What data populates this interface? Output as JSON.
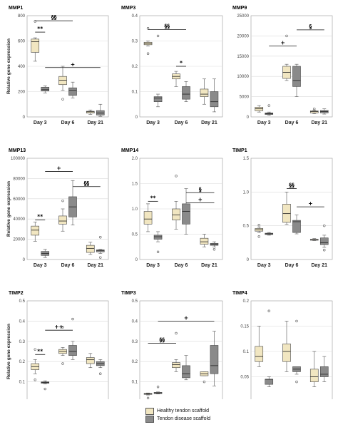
{
  "colors": {
    "healthy": "#f1e6c1",
    "disease": "#8a8a8a",
    "grid": "#d9d9d9",
    "frame": "#999999",
    "line": "#111111"
  },
  "y_axis_label": "Relative gene expression",
  "legend": [
    {
      "label": "Healthy tendon scaffold",
      "color": "#f1e6c1"
    },
    {
      "label": "Tendon disease scaffold",
      "color": "#8a8a8a"
    }
  ],
  "chart_data": [
    {
      "type": "box",
      "title": "MMP1",
      "categories": [
        "Day 3",
        "Day 6",
        "Day 21"
      ],
      "ylim": [
        0,
        800
      ],
      "yticks": [
        0,
        200,
        400,
        600,
        800
      ],
      "ytick_labels": [
        "0",
        "200",
        "400",
        "600",
        "800"
      ],
      "show_ylabel": true,
      "boxes": [
        {
          "day": "Day 3",
          "series": "healthy",
          "min": 440,
          "q1": 510,
          "median": 595,
          "q3": 615,
          "max": 625,
          "outliers": [
            755
          ]
        },
        {
          "day": "Day 3",
          "series": "disease",
          "min": 190,
          "q1": 205,
          "median": 215,
          "q3": 235,
          "max": 245,
          "outliers": []
        },
        {
          "day": "Day 6",
          "series": "healthy",
          "min": 210,
          "q1": 255,
          "median": 290,
          "q3": 320,
          "max": 400,
          "outliers": [
            140
          ]
        },
        {
          "day": "Day 6",
          "series": "disease",
          "min": 150,
          "q1": 170,
          "median": 210,
          "q3": 230,
          "max": 275,
          "outliers": []
        },
        {
          "day": "Day 21",
          "series": "healthy",
          "min": 20,
          "q1": 30,
          "median": 40,
          "q3": 45,
          "max": 55,
          "outliers": []
        },
        {
          "day": "Day 21",
          "series": "disease",
          "min": 5,
          "q1": 15,
          "median": 30,
          "q3": 50,
          "max": 100,
          "outliers": []
        }
      ],
      "annotations": [
        {
          "label": "§§",
          "from": 0,
          "to": 3,
          "y": 760
        },
        {
          "label": "**",
          "from": 0,
          "to": 1,
          "y": 670
        },
        {
          "label": "+",
          "from": 1,
          "to": 5,
          "y": 390
        }
      ]
    },
    {
      "type": "box",
      "title": "MMP3",
      "categories": [
        "Day 3",
        "Day 6",
        "Day 21"
      ],
      "ylim": [
        0,
        0.4
      ],
      "yticks": [
        0,
        0.1,
        0.2,
        0.3,
        0.4
      ],
      "ytick_labels": [
        "0",
        "0.1",
        "0.2",
        "0.3",
        "0.4"
      ],
      "show_ylabel": false,
      "boxes": [
        {
          "day": "Day 3",
          "series": "healthy",
          "min": 0.28,
          "q1": 0.285,
          "median": 0.29,
          "q3": 0.295,
          "max": 0.3,
          "outliers": [
            0.35,
            0.25
          ]
        },
        {
          "day": "Day 3",
          "series": "disease",
          "min": 0.04,
          "q1": 0.06,
          "median": 0.075,
          "q3": 0.08,
          "max": 0.09,
          "outliers": [
            0.32
          ]
        },
        {
          "day": "Day 6",
          "series": "healthy",
          "min": 0.12,
          "q1": 0.15,
          "median": 0.16,
          "q3": 0.17,
          "max": 0.18,
          "outliers": []
        },
        {
          "day": "Day 6",
          "series": "disease",
          "min": 0.06,
          "q1": 0.07,
          "median": 0.09,
          "q3": 0.12,
          "max": 0.14,
          "outliers": []
        },
        {
          "day": "Day 21",
          "series": "healthy",
          "min": 0.05,
          "q1": 0.08,
          "median": 0.09,
          "q3": 0.11,
          "max": 0.15,
          "outliers": []
        },
        {
          "day": "Day 21",
          "series": "disease",
          "min": 0.02,
          "q1": 0.04,
          "median": 0.06,
          "q3": 0.1,
          "max": 0.15,
          "outliers": []
        }
      ],
      "annotations": [
        {
          "label": "§§",
          "from": 0,
          "to": 3,
          "y": 0.345
        },
        {
          "label": "*",
          "from": 2,
          "to": 3,
          "y": 0.2
        }
      ]
    },
    {
      "type": "box",
      "title": "MMP9",
      "categories": [
        "Day 3",
        "Day 6",
        "Day 21"
      ],
      "ylim": [
        0,
        25000
      ],
      "yticks": [
        0,
        5000,
        10000,
        15000,
        20000,
        25000
      ],
      "ytick_labels": [
        "0",
        "5000",
        "10000",
        "15000",
        "20000",
        "25000"
      ],
      "show_ylabel": false,
      "boxes": [
        {
          "day": "Day 3",
          "series": "healthy",
          "min": 1200,
          "q1": 1500,
          "median": 2000,
          "q3": 2400,
          "max": 2800,
          "outliers": []
        },
        {
          "day": "Day 3",
          "series": "disease",
          "min": 400,
          "q1": 600,
          "median": 800,
          "q3": 1000,
          "max": 1200,
          "outliers": [
            2800
          ]
        },
        {
          "day": "Day 6",
          "series": "healthy",
          "min": 9000,
          "q1": 9500,
          "median": 11000,
          "q3": 12500,
          "max": 13000,
          "outliers": [
            20000
          ]
        },
        {
          "day": "Day 6",
          "series": "disease",
          "min": 5000,
          "q1": 7500,
          "median": 9000,
          "q3": 12500,
          "max": 13000,
          "outliers": []
        },
        {
          "day": "Day 21",
          "series": "healthy",
          "min": 800,
          "q1": 1000,
          "median": 1300,
          "q3": 1500,
          "max": 1700,
          "outliers": [
            2000
          ]
        },
        {
          "day": "Day 21",
          "series": "disease",
          "min": 700,
          "q1": 1000,
          "median": 1300,
          "q3": 1600,
          "max": 2000,
          "outliers": []
        }
      ],
      "annotations": [
        {
          "label": "§",
          "from": 3,
          "to": 5,
          "y": 21500
        },
        {
          "label": "+",
          "from": 1,
          "to": 3,
          "y": 17500
        }
      ]
    },
    {
      "type": "box",
      "title": "MMP13",
      "categories": [
        "Day 3",
        "Day 6",
        "Day 21"
      ],
      "ylim": [
        0,
        100000
      ],
      "yticks": [
        0,
        20000,
        40000,
        60000,
        80000,
        100000
      ],
      "ytick_labels": [
        "0",
        "20000",
        "40000",
        "60000",
        "80000",
        "100000"
      ],
      "show_ylabel": true,
      "boxes": [
        {
          "day": "Day 3",
          "series": "healthy",
          "min": 18000,
          "q1": 24000,
          "median": 29000,
          "q3": 33000,
          "max": 37000,
          "outliers": []
        },
        {
          "day": "Day 3",
          "series": "disease",
          "min": 2000,
          "q1": 4000,
          "median": 6000,
          "q3": 8000,
          "max": 10000,
          "outliers": []
        },
        {
          "day": "Day 6",
          "series": "healthy",
          "min": 28000,
          "q1": 35000,
          "median": 38000,
          "q3": 43000,
          "max": 50000,
          "outliers": [
            58000
          ]
        },
        {
          "day": "Day 6",
          "series": "disease",
          "min": 34000,
          "q1": 42000,
          "median": 52000,
          "q3": 62000,
          "max": 78000,
          "outliers": []
        },
        {
          "day": "Day 21",
          "series": "healthy",
          "min": 5000,
          "q1": 7000,
          "median": 11000,
          "q3": 14000,
          "max": 17000,
          "outliers": []
        },
        {
          "day": "Day 21",
          "series": "disease",
          "min": 6000,
          "q1": 7500,
          "median": 9000,
          "q3": 9500,
          "max": 10000,
          "outliers": [
            22000,
            2000
          ]
        }
      ],
      "annotations": [
        {
          "label": "+",
          "from": 1,
          "to": 3,
          "y": 87000
        },
        {
          "label": "§§",
          "from": 3,
          "to": 5,
          "y": 72000
        },
        {
          "label": "**",
          "from": 0,
          "to": 1,
          "y": 39000
        }
      ]
    },
    {
      "type": "box",
      "title": "MMP14",
      "categories": [
        "Day 3",
        "Day 6",
        "Day 21"
      ],
      "ylim": [
        0,
        2.0
      ],
      "yticks": [
        0,
        0.5,
        1.0,
        1.5,
        2.0
      ],
      "ytick_labels": [
        "0",
        "0.5",
        "1.0",
        "1.5",
        "2.0"
      ],
      "show_ylabel": false,
      "boxes": [
        {
          "day": "Day 3",
          "series": "healthy",
          "min": 0.55,
          "q1": 0.7,
          "median": 0.8,
          "q3": 0.95,
          "max": 1.1,
          "outliers": []
        },
        {
          "day": "Day 3",
          "series": "disease",
          "min": 0.35,
          "q1": 0.4,
          "median": 0.45,
          "q3": 0.48,
          "max": 0.55,
          "outliers": [
            0.15
          ]
        },
        {
          "day": "Day 6",
          "series": "healthy",
          "min": 0.6,
          "q1": 0.78,
          "median": 0.88,
          "q3": 1.0,
          "max": 1.15,
          "outliers": [
            1.65
          ]
        },
        {
          "day": "Day 6",
          "series": "disease",
          "min": 0.5,
          "q1": 0.7,
          "median": 0.95,
          "q3": 1.1,
          "max": 1.4,
          "outliers": []
        },
        {
          "day": "Day 21",
          "series": "healthy",
          "min": 0.25,
          "q1": 0.3,
          "median": 0.35,
          "q3": 0.42,
          "max": 0.5,
          "outliers": []
        },
        {
          "day": "Day 21",
          "series": "disease",
          "min": 0.25,
          "q1": 0.28,
          "median": 0.3,
          "q3": 0.32,
          "max": 0.35,
          "outliers": [
            0.2
          ]
        }
      ],
      "annotations": [
        {
          "label": "§",
          "from": 3,
          "to": 5,
          "y": 1.32
        },
        {
          "label": "+",
          "from": 3,
          "to": 5,
          "y": 1.12
        },
        {
          "label": "**",
          "from": 0,
          "to": 1,
          "y": 1.15
        }
      ]
    },
    {
      "type": "box",
      "title": "TIMP1",
      "categories": [
        "Day 3",
        "Day 6",
        "Day 21"
      ],
      "ylim": [
        0,
        1.5
      ],
      "yticks": [
        0,
        0.5,
        1.0,
        1.5
      ],
      "ytick_labels": [
        "0",
        "0.5",
        "1.0",
        "1.5"
      ],
      "show_ylabel": false,
      "boxes": [
        {
          "day": "Day 3",
          "series": "healthy",
          "min": 0.4,
          "q1": 0.42,
          "median": 0.44,
          "q3": 0.46,
          "max": 0.48,
          "outliers": [
            0.51,
            0.34
          ]
        },
        {
          "day": "Day 3",
          "series": "disease",
          "min": 0.36,
          "q1": 0.37,
          "median": 0.38,
          "q3": 0.39,
          "max": 0.4,
          "outliers": []
        },
        {
          "day": "Day 6",
          "series": "healthy",
          "min": 0.52,
          "q1": 0.55,
          "median": 0.68,
          "q3": 0.82,
          "max": 1.0,
          "outliers": []
        },
        {
          "day": "Day 6",
          "series": "disease",
          "min": 0.38,
          "q1": 0.4,
          "median": 0.56,
          "q3": 0.58,
          "max": 0.66,
          "outliers": []
        },
        {
          "day": "Day 21",
          "series": "healthy",
          "min": 0.28,
          "q1": 0.285,
          "median": 0.295,
          "q3": 0.3,
          "max": 0.31,
          "outliers": []
        },
        {
          "day": "Day 21",
          "series": "disease",
          "min": 0.18,
          "q1": 0.22,
          "median": 0.25,
          "q3": 0.32,
          "max": 0.36,
          "outliers": [
            0.14,
            0.5
          ]
        }
      ],
      "annotations": [
        {
          "label": "§§",
          "from": 2,
          "to": 3,
          "y": 1.05
        },
        {
          "label": "+",
          "from": 3,
          "to": 5,
          "y": 0.78
        }
      ]
    },
    {
      "type": "box",
      "title": "TIMP2",
      "categories": [
        "Day 3",
        "Day 6",
        "Day 21"
      ],
      "ylim": [
        0,
        0.5
      ],
      "yticks": [
        0,
        0.1,
        0.2,
        0.3,
        0.4,
        0.5
      ],
      "ytick_labels": [
        "0",
        "0.1",
        "0.2",
        "0.3",
        "0.4",
        "0.5"
      ],
      "show_ylabel": true,
      "boxes": [
        {
          "day": "Day 3",
          "series": "healthy",
          "min": 0.14,
          "q1": 0.16,
          "median": 0.175,
          "q3": 0.19,
          "max": 0.21,
          "outliers": [
            0.26,
            0.11
          ]
        },
        {
          "day": "Day 3",
          "series": "disease",
          "min": 0.09,
          "q1": 0.093,
          "median": 0.097,
          "q3": 0.1,
          "max": 0.105,
          "outliers": [
            0.065
          ]
        },
        {
          "day": "Day 6",
          "series": "healthy",
          "min": 0.23,
          "q1": 0.24,
          "median": 0.25,
          "q3": 0.26,
          "max": 0.27,
          "outliers": [
            0.37,
            0.19
          ]
        },
        {
          "day": "Day 6",
          "series": "disease",
          "min": 0.21,
          "q1": 0.23,
          "median": 0.25,
          "q3": 0.28,
          "max": 0.3,
          "outliers": [
            0.41
          ]
        },
        {
          "day": "Day 21",
          "series": "healthy",
          "min": 0.17,
          "q1": 0.19,
          "median": 0.21,
          "q3": 0.22,
          "max": 0.24,
          "outliers": []
        },
        {
          "day": "Day 21",
          "series": "disease",
          "min": 0.17,
          "q1": 0.18,
          "median": 0.19,
          "q3": 0.2,
          "max": 0.21,
          "outliers": [
            0.14
          ]
        }
      ],
      "annotations": [
        {
          "label": "++",
          "from": 1,
          "to": 3,
          "y": 0.355
        },
        {
          "label": "**",
          "from": 0,
          "to": 1,
          "y": 0.235
        }
      ]
    },
    {
      "type": "box",
      "title": "TIMP3",
      "categories": [
        "Day 3",
        "Day 6",
        "Day 21"
      ],
      "ylim": [
        0,
        0.5
      ],
      "yticks": [
        0,
        0.1,
        0.2,
        0.3,
        0.4,
        0.5
      ],
      "ytick_labels": [
        "0",
        "0.1",
        "0.2",
        "0.3",
        "0.4",
        "0.5"
      ],
      "show_ylabel": false,
      "boxes": [
        {
          "day": "Day 3",
          "series": "healthy",
          "min": 0.035,
          "q1": 0.038,
          "median": 0.04,
          "q3": 0.043,
          "max": 0.045,
          "outliers": [
            0.02
          ]
        },
        {
          "day": "Day 3",
          "series": "disease",
          "min": 0.04,
          "q1": 0.042,
          "median": 0.045,
          "q3": 0.048,
          "max": 0.05,
          "outliers": [
            0.075
          ]
        },
        {
          "day": "Day 6",
          "series": "healthy",
          "min": 0.15,
          "q1": 0.17,
          "median": 0.185,
          "q3": 0.195,
          "max": 0.21,
          "outliers": [
            0.34
          ]
        },
        {
          "day": "Day 6",
          "series": "disease",
          "min": 0.11,
          "q1": 0.12,
          "median": 0.14,
          "q3": 0.18,
          "max": 0.23,
          "outliers": []
        },
        {
          "day": "Day 21",
          "series": "healthy",
          "min": 0.13,
          "q1": 0.13,
          "median": 0.14,
          "q3": 0.15,
          "max": 0.15,
          "outliers": [
            0.1
          ]
        },
        {
          "day": "Day 21",
          "series": "disease",
          "min": 0.08,
          "q1": 0.14,
          "median": 0.18,
          "q3": 0.28,
          "max": 0.35,
          "outliers": []
        }
      ],
      "annotations": [
        {
          "label": "+",
          "from": 1,
          "to": 5,
          "y": 0.4
        },
        {
          "label": "§§",
          "from": 0,
          "to": 2,
          "y": 0.29
        }
      ]
    },
    {
      "type": "box",
      "title": "TIMP4",
      "categories": [
        "Day 3",
        "Day 6",
        "Day 21"
      ],
      "ylim": [
        0,
        0.2
      ],
      "yticks": [
        0,
        0.05,
        0.1,
        0.15,
        0.2
      ],
      "ytick_labels": [
        "0",
        "0.05",
        "0.1",
        "0.15",
        "0.2"
      ],
      "show_ylabel": false,
      "boxes": [
        {
          "day": "Day 3",
          "series": "healthy",
          "min": 0.07,
          "q1": 0.08,
          "median": 0.09,
          "q3": 0.11,
          "max": 0.15,
          "outliers": []
        },
        {
          "day": "Day 3",
          "series": "disease",
          "min": 0.03,
          "q1": 0.035,
          "median": 0.045,
          "q3": 0.045,
          "max": 0.05,
          "outliers": [
            0.18
          ]
        },
        {
          "day": "Day 6",
          "series": "healthy",
          "min": 0.06,
          "q1": 0.08,
          "median": 0.1,
          "q3": 0.115,
          "max": 0.16,
          "outliers": []
        },
        {
          "day": "Day 6",
          "series": "disease",
          "min": 0.055,
          "q1": 0.06,
          "median": 0.065,
          "q3": 0.07,
          "max": 0.07,
          "outliers": [
            0.16,
            0.04
          ]
        },
        {
          "day": "Day 21",
          "series": "healthy",
          "min": 0.03,
          "q1": 0.04,
          "median": 0.05,
          "q3": 0.065,
          "max": 0.1,
          "outliers": []
        },
        {
          "day": "Day 21",
          "series": "disease",
          "min": 0.04,
          "q1": 0.05,
          "median": 0.055,
          "q3": 0.07,
          "max": 0.09,
          "outliers": []
        }
      ],
      "annotations": []
    }
  ]
}
